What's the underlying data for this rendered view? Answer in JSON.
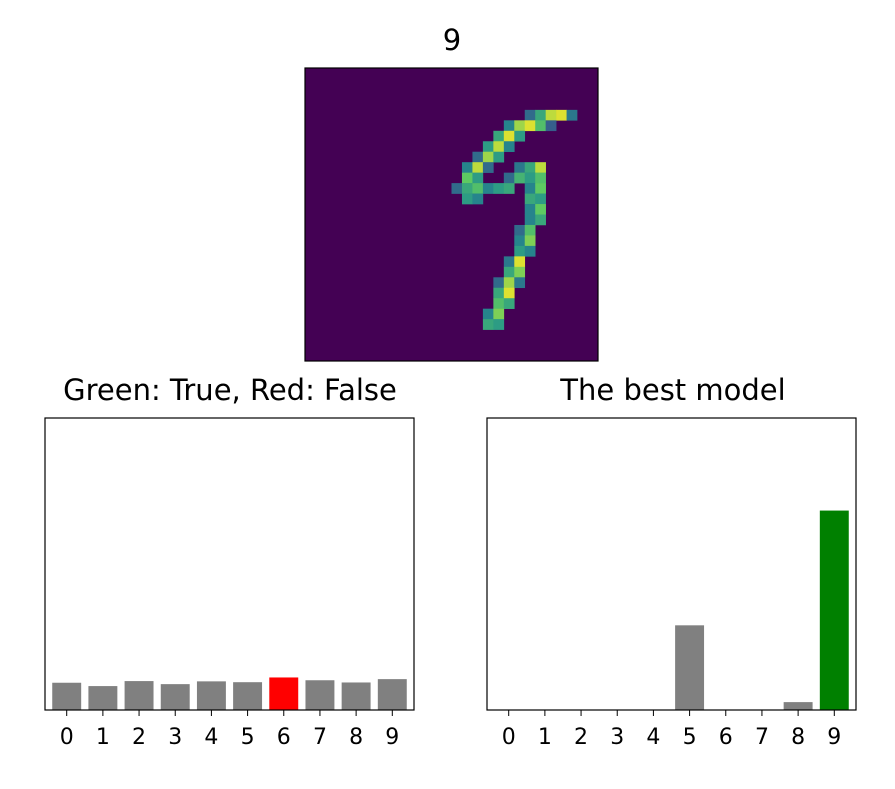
{
  "image_panel": {
    "title": "9",
    "colormap": [
      "#440154",
      "#3b528b",
      "#21918c",
      "#5ec962",
      "#fde725"
    ],
    "grid_size": 28,
    "pixels": [
      [
        4,
        21,
        0.35
      ],
      [
        4,
        22,
        0.6
      ],
      [
        4,
        23,
        0.9
      ],
      [
        4,
        24,
        0.95
      ],
      [
        4,
        25,
        0.4
      ],
      [
        5,
        19,
        0.45
      ],
      [
        5,
        20,
        0.85
      ],
      [
        5,
        21,
        0.95
      ],
      [
        5,
        22,
        0.7
      ],
      [
        5,
        23,
        0.3
      ],
      [
        6,
        18,
        0.6
      ],
      [
        6,
        19,
        0.95
      ],
      [
        6,
        20,
        0.55
      ],
      [
        7,
        17,
        0.55
      ],
      [
        7,
        18,
        0.9
      ],
      [
        7,
        19,
        0.45
      ],
      [
        8,
        16,
        0.35
      ],
      [
        8,
        17,
        0.85
      ],
      [
        8,
        18,
        0.55
      ],
      [
        9,
        15,
        0.45
      ],
      [
        9,
        16,
        0.9
      ],
      [
        9,
        17,
        0.35
      ],
      [
        9,
        20,
        0.4
      ],
      [
        9,
        21,
        0.6
      ],
      [
        9,
        22,
        0.9
      ],
      [
        10,
        15,
        0.75
      ],
      [
        10,
        16,
        0.55
      ],
      [
        10,
        19,
        0.35
      ],
      [
        10,
        20,
        0.65
      ],
      [
        10,
        21,
        0.55
      ],
      [
        10,
        22,
        0.7
      ],
      [
        11,
        14,
        0.35
      ],
      [
        11,
        15,
        0.6
      ],
      [
        11,
        16,
        0.7
      ],
      [
        11,
        17,
        0.45
      ],
      [
        11,
        18,
        0.55
      ],
      [
        11,
        19,
        0.6
      ],
      [
        11,
        21,
        0.45
      ],
      [
        11,
        22,
        0.75
      ],
      [
        12,
        15,
        0.55
      ],
      [
        12,
        16,
        0.45
      ],
      [
        12,
        21,
        0.6
      ],
      [
        12,
        22,
        0.55
      ],
      [
        13,
        21,
        0.45
      ],
      [
        13,
        22,
        0.75
      ],
      [
        14,
        21,
        0.45
      ],
      [
        14,
        22,
        0.6
      ],
      [
        15,
        20,
        0.35
      ],
      [
        15,
        21,
        0.7
      ],
      [
        16,
        20,
        0.45
      ],
      [
        16,
        21,
        0.8
      ],
      [
        17,
        20,
        0.55
      ],
      [
        17,
        21,
        0.45
      ],
      [
        18,
        19,
        0.4
      ],
      [
        18,
        20,
        0.95
      ],
      [
        19,
        19,
        0.6
      ],
      [
        19,
        20,
        0.8
      ],
      [
        20,
        18,
        0.35
      ],
      [
        20,
        19,
        0.85
      ],
      [
        20,
        20,
        0.4
      ],
      [
        21,
        18,
        0.6
      ],
      [
        21,
        19,
        0.95
      ],
      [
        22,
        18,
        0.7
      ],
      [
        22,
        19,
        0.6
      ],
      [
        23,
        17,
        0.45
      ],
      [
        23,
        18,
        0.8
      ],
      [
        24,
        17,
        0.6
      ],
      [
        24,
        18,
        0.55
      ]
    ]
  },
  "chart_data": [
    {
      "type": "bar",
      "title": "Green: True, Red: False",
      "categories": [
        "0",
        "1",
        "2",
        "3",
        "4",
        "5",
        "6",
        "7",
        "8",
        "9"
      ],
      "values": [
        0.098,
        0.086,
        0.104,
        0.093,
        0.103,
        0.1,
        0.117,
        0.107,
        0.099,
        0.111
      ],
      "bar_colors": [
        "#808080",
        "#808080",
        "#808080",
        "#808080",
        "#808080",
        "#808080",
        "#ff0000",
        "#808080",
        "#808080",
        "#808080"
      ],
      "ylim": [
        0,
        1.05
      ],
      "show_y_ticks": false,
      "grid": false
    },
    {
      "type": "bar",
      "title": "The best model",
      "categories": [
        "0",
        "1",
        "2",
        "3",
        "4",
        "5",
        "6",
        "7",
        "8",
        "9"
      ],
      "values": [
        0.0,
        0.0,
        0.0,
        0.0,
        0.0,
        0.29,
        0.0,
        0.0,
        0.027,
        0.683
      ],
      "bar_colors": [
        "#808080",
        "#808080",
        "#808080",
        "#808080",
        "#808080",
        "#808080",
        "#808080",
        "#808080",
        "#808080",
        "#008000"
      ],
      "ylim": [
        0,
        1.0
      ],
      "show_y_ticks": false,
      "grid": false
    }
  ]
}
